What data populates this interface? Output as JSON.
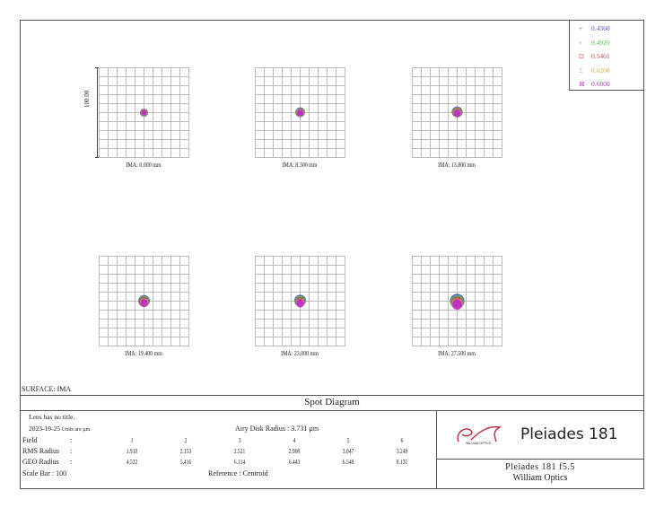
{
  "legend": [
    {
      "wavelength": "0.4360",
      "color": "#5050c8",
      "marker": "+"
    },
    {
      "wavelength": "0.4920",
      "color": "#50c050",
      "marker": "×"
    },
    {
      "wavelength": "0.5461",
      "color": "#c04848",
      "marker": "⊡"
    },
    {
      "wavelength": "0.6200",
      "color": "#d0b040",
      "marker": "⌶"
    },
    {
      "wavelength": "0.6800",
      "color": "#c030c8",
      "marker": "⌘"
    }
  ],
  "scale_bar_label": "100.00",
  "plots": [
    {
      "label": "IMA: 0.000 mm",
      "geo": 4.522
    },
    {
      "label": "IMA: 8.300 mm",
      "geo": 5.416
    },
    {
      "label": "IMA: 13.800 mm",
      "geo": 6.114
    },
    {
      "label": "IMA: 19.400 mm",
      "geo": 6.443
    },
    {
      "label": "IMA: 23.000 mm",
      "geo": 6.548
    },
    {
      "label": "IMA: 27.500 mm",
      "geo": 8.131
    }
  ],
  "surface": "SURFACE: IMA",
  "title": "Spot Diagram",
  "info": {
    "lens_title": "Lens has no title.",
    "date": "2023-10-25",
    "units": "Units are µm.",
    "airy": "Airy Disk Radius : 3.731 µm",
    "field_label": "Field",
    "rms_label": "RMS Radius",
    "geo_label": "GEO Radius",
    "colon": ":",
    "fields": [
      "1",
      "2",
      "3",
      "4",
      "5",
      "6"
    ],
    "rms": [
      "1.910",
      "2.153",
      "2.521",
      "2.900",
      "3.047",
      "3.249"
    ],
    "geo": [
      "4.522",
      "5.416",
      "6.114",
      "6.443",
      "6.548",
      "8.131"
    ],
    "scale_bar": "Scale Bar   : 100",
    "reference": "Reference  :  Centroid"
  },
  "brand": {
    "logo_text": "WILLIAM OPTICS",
    "product": "Pleiades 181",
    "line1": "Pleiades 181 f5.5",
    "line2": "William Optics"
  }
}
